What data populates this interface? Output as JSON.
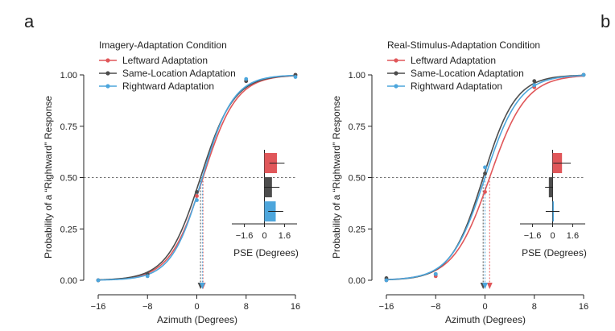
{
  "chart_data": [
    {
      "type": "line",
      "panel_letter": "a",
      "title": "Imagery-Adaptation Condition",
      "xlabel": "Azimuth (Degrees)",
      "ylabel": "Probability of a “Rightward” Response",
      "xlim": [
        -16,
        16
      ],
      "ylim": [
        0,
        1
      ],
      "xticks": [
        -16,
        -8,
        0,
        8,
        16
      ],
      "xtick_labels": [
        "−16",
        "−8",
        "0",
        "8",
        "16"
      ],
      "yticks": [
        0,
        0.25,
        0.5,
        0.75,
        1.0
      ],
      "ytick_labels": [
        "0.00",
        "0.25",
        "0.50",
        "0.75",
        "1.00"
      ],
      "reference_line_y": 0.5,
      "legend": "top-left",
      "series": [
        {
          "name": "Leftward Adaptation",
          "color": "#e0575a",
          "pse": 1.0,
          "slope": 0.37,
          "points": [
            {
              "x": -16,
              "y": 0.0
            },
            {
              "x": -8,
              "y": 0.03
            },
            {
              "x": 0,
              "y": 0.41
            },
            {
              "x": 8,
              "y": 0.97
            },
            {
              "x": 16,
              "y": 1.0
            }
          ]
        },
        {
          "name": "Same-Location Adaptation",
          "color": "#4d4d4d",
          "pse": 0.6,
          "slope": 0.37,
          "points": [
            {
              "x": -16,
              "y": 0.0
            },
            {
              "x": -8,
              "y": 0.03
            },
            {
              "x": 0,
              "y": 0.43
            },
            {
              "x": 8,
              "y": 0.97
            },
            {
              "x": 16,
              "y": 1.0
            }
          ]
        },
        {
          "name": "Rightward Adaptation",
          "color": "#4da6dc",
          "pse": 0.9,
          "slope": 0.4,
          "points": [
            {
              "x": -16,
              "y": 0.0
            },
            {
              "x": -8,
              "y": 0.02
            },
            {
              "x": 0,
              "y": 0.39
            },
            {
              "x": 8,
              "y": 0.98
            },
            {
              "x": 16,
              "y": 0.99
            }
          ]
        }
      ],
      "inset": {
        "xlabel": "PSE (Degrees)",
        "xlim": [
          -2.6,
          2.6
        ],
        "xticks": [
          -1.6,
          0,
          1.6
        ],
        "xtick_labels": [
          "−1.6",
          "0",
          "1.6"
        ],
        "bars": [
          {
            "name": "Leftward Adaptation",
            "value": 1.0,
            "error": 0.6
          },
          {
            "name": "Same-Location Adaptation",
            "value": 0.6,
            "error": 0.6
          },
          {
            "name": "Rightward Adaptation",
            "value": 0.9,
            "error": 0.6
          }
        ]
      }
    },
    {
      "type": "line",
      "panel_letter": "b",
      "title": "Real-Stimulus-Adaptation Condition",
      "xlabel": "Azimuth (Degrees)",
      "ylabel": "Probability of a “Rightward” Response",
      "xlim": [
        -16,
        16
      ],
      "ylim": [
        0,
        1
      ],
      "xticks": [
        -16,
        -8,
        0,
        8,
        16
      ],
      "xtick_labels": [
        "−16",
        "−8",
        "0",
        "8",
        "16"
      ],
      "yticks": [
        0,
        0.25,
        0.5,
        0.75,
        1.0
      ],
      "ytick_labels": [
        "0.00",
        "0.25",
        "0.50",
        "0.75",
        "1.00"
      ],
      "reference_line_y": 0.5,
      "legend": "top-left",
      "series": [
        {
          "name": "Leftward Adaptation",
          "color": "#e0575a",
          "pse": 0.75,
          "slope": 0.34,
          "points": [
            {
              "x": -16,
              "y": 0.0
            },
            {
              "x": -8,
              "y": 0.02
            },
            {
              "x": 0,
              "y": 0.43
            },
            {
              "x": 8,
              "y": 0.94
            },
            {
              "x": 16,
              "y": 1.0
            }
          ]
        },
        {
          "name": "Same-Location Adaptation",
          "color": "#4d4d4d",
          "pse": -0.3,
          "slope": 0.38,
          "points": [
            {
              "x": -16,
              "y": 0.01
            },
            {
              "x": -8,
              "y": 0.03
            },
            {
              "x": 0,
              "y": 0.52
            },
            {
              "x": 8,
              "y": 0.97
            },
            {
              "x": 16,
              "y": 1.0
            }
          ]
        },
        {
          "name": "Rightward Adaptation",
          "color": "#4da6dc",
          "pse": 0.0,
          "slope": 0.36,
          "points": [
            {
              "x": -16,
              "y": 0.0
            },
            {
              "x": -8,
              "y": 0.03
            },
            {
              "x": 0,
              "y": 0.55
            },
            {
              "x": 8,
              "y": 0.95
            },
            {
              "x": 16,
              "y": 1.0
            }
          ]
        }
      ],
      "inset": {
        "xlabel": "PSE (Degrees)",
        "xlim": [
          -2.6,
          2.6
        ],
        "xticks": [
          -1.6,
          0,
          1.6
        ],
        "xtick_labels": [
          "−1.6",
          "0",
          "1.6"
        ],
        "bars": [
          {
            "name": "Leftward Adaptation",
            "value": 0.75,
            "error": 0.7
          },
          {
            "name": "Same-Location Adaptation",
            "value": -0.3,
            "error": 0.3
          },
          {
            "name": "Rightward Adaptation",
            "value": 0.0,
            "error": 0.55
          }
        ]
      }
    }
  ]
}
